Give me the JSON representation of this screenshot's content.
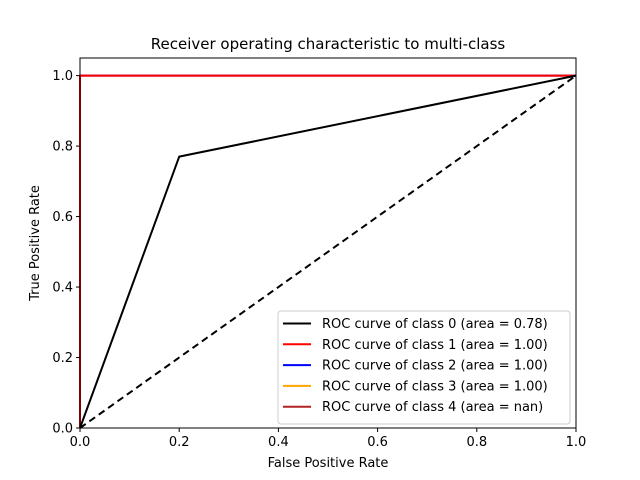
{
  "chart_data": {
    "type": "line",
    "title": "Receiver operating characteristic to multi-class",
    "xlabel": "False Positive Rate",
    "ylabel": "True Positive Rate",
    "xlim": [
      0.0,
      1.0
    ],
    "ylim": [
      0.0,
      1.05
    ],
    "xticks": [
      "0.0",
      "0.2",
      "0.4",
      "0.6",
      "0.8",
      "1.0"
    ],
    "yticks": [
      "0.0",
      "0.2",
      "0.4",
      "0.6",
      "0.8",
      "1.0"
    ],
    "grid": false,
    "legend_position": "lower-right",
    "series": [
      {
        "name": "ROC curve of class 0 (area = 0.78)",
        "color": "#000000",
        "x": [
          0.0,
          0.2,
          1.0
        ],
        "y": [
          0.0,
          0.77,
          1.0
        ]
      },
      {
        "name": "ROC curve of class 1 (area = 1.00)",
        "color": "#ff0000",
        "x": [
          0.0,
          0.0,
          1.0
        ],
        "y": [
          0.0,
          1.0,
          1.0
        ]
      },
      {
        "name": "ROC curve of class 2 (area = 1.00)",
        "color": "#0000ff",
        "x": [
          0.0,
          0.0,
          1.0
        ],
        "y": [
          0.0,
          1.0,
          1.0
        ]
      },
      {
        "name": "ROC curve of class 3 (area = 1.00)",
        "color": "#ffa500",
        "x": [
          0.0,
          0.0,
          1.0
        ],
        "y": [
          0.0,
          1.0,
          1.0
        ]
      },
      {
        "name": "ROC curve of class 4 (area = nan)",
        "color": "#b22222",
        "x": [],
        "y": []
      }
    ],
    "reference_line": {
      "style": "dashed",
      "color": "#000000",
      "x": [
        0.0,
        1.0
      ],
      "y": [
        0.0,
        1.0
      ]
    }
  }
}
